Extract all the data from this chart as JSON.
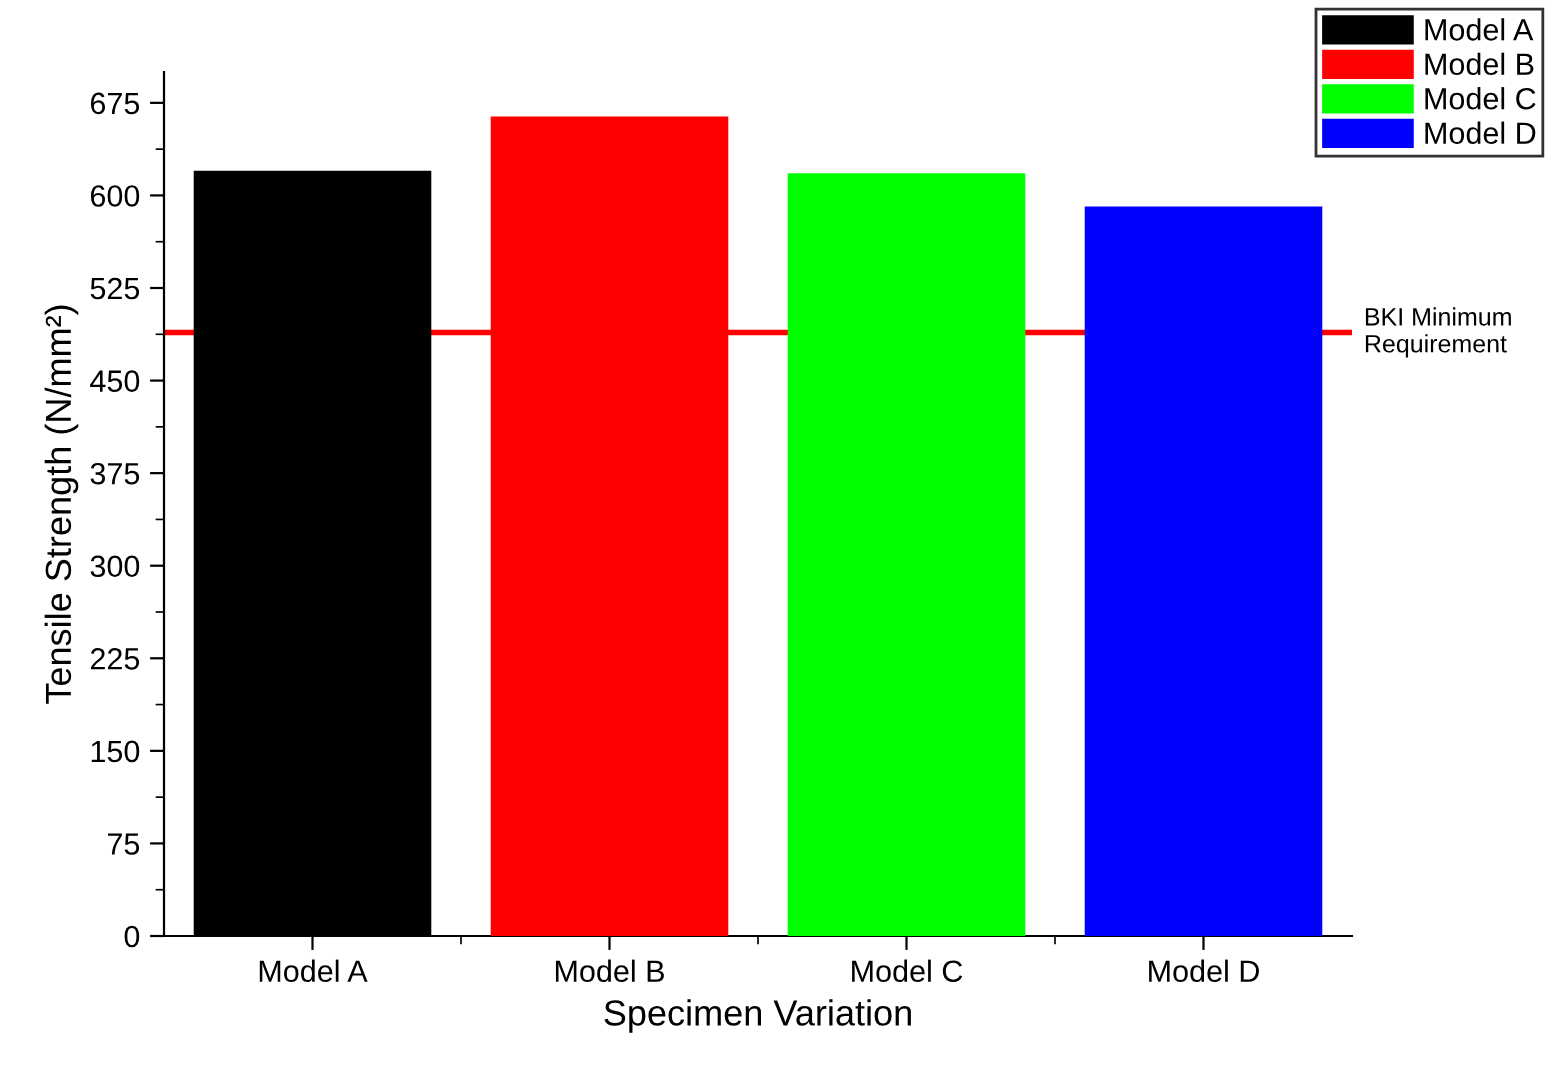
{
  "chart_data": {
    "type": "bar",
    "xlabel": "Specimen Variation",
    "ylabel": "Tensile Strength (N/mm²)",
    "categories": [
      "Model A",
      "Model B",
      "Model C",
      "Model D"
    ],
    "series": [
      {
        "name": "Model A",
        "color": "#000000",
        "values": [
          620,
          null,
          null,
          null
        ]
      },
      {
        "name": "Model B",
        "color": "#ff0000",
        "values": [
          null,
          664,
          null,
          null
        ]
      },
      {
        "name": "Model C",
        "color": "#00ff00",
        "values": [
          null,
          null,
          618,
          null
        ]
      },
      {
        "name": "Model D",
        "color": "#0000ff",
        "values": [
          null,
          null,
          null,
          591
        ]
      }
    ],
    "ylim": [
      0,
      700
    ],
    "yticks": [
      0,
      75,
      150,
      225,
      300,
      375,
      450,
      525,
      600,
      675
    ],
    "ref_lines": [
      {
        "axis": "y",
        "value": 489,
        "label": "BKI Minimum\nRequirement",
        "color": "#ff0000",
        "line_style": "solid"
      }
    ],
    "legend": "top right",
    "grid": false
  }
}
